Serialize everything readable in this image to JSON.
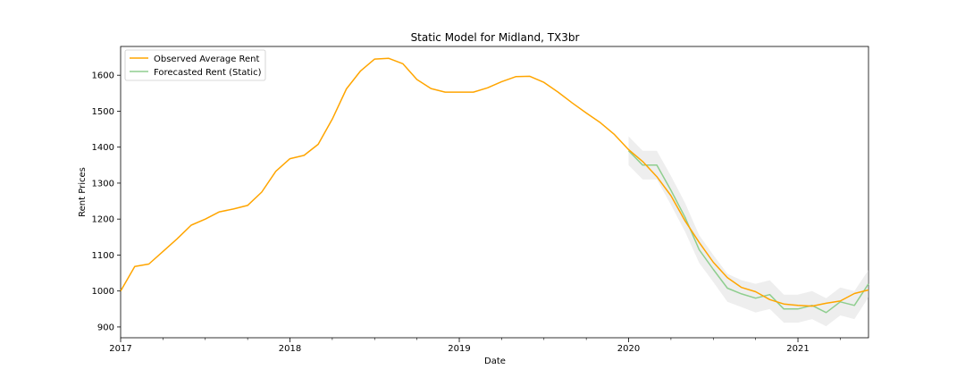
{
  "chart_data": {
    "type": "line",
    "title": "Static Model for Midland, TX3br",
    "xlabel": "Date",
    "ylabel": "Rent Prices",
    "x_ticks": [
      "2017",
      "2018",
      "2019",
      "2020",
      "2021"
    ],
    "y_ticks": [
      "900",
      "1000",
      "1100",
      "1200",
      "1300",
      "1400",
      "1500",
      "1600"
    ],
    "ylim": [
      870,
      1680
    ],
    "xlim": [
      "2017-01",
      "2021-06"
    ],
    "grid": false,
    "legend_position": "top-left",
    "series": [
      {
        "name": "Observed Average Rent",
        "color": "#ffa500",
        "x": [
          "2017-01",
          "2017-02",
          "2017-03",
          "2017-04",
          "2017-05",
          "2017-06",
          "2017-07",
          "2017-08",
          "2017-09",
          "2017-10",
          "2017-11",
          "2017-12",
          "2018-01",
          "2018-02",
          "2018-03",
          "2018-04",
          "2018-05",
          "2018-06",
          "2018-07",
          "2018-08",
          "2018-09",
          "2018-10",
          "2018-11",
          "2018-12",
          "2019-01",
          "2019-02",
          "2019-03",
          "2019-04",
          "2019-05",
          "2019-06",
          "2019-07",
          "2019-08",
          "2019-09",
          "2019-10",
          "2019-11",
          "2019-12",
          "2020-01",
          "2020-02",
          "2020-03",
          "2020-04",
          "2020-05",
          "2020-06",
          "2020-07",
          "2020-08",
          "2020-09",
          "2020-10",
          "2020-11",
          "2020-12",
          "2021-01",
          "2021-02",
          "2021-03",
          "2021-04",
          "2021-05",
          "2021-06"
        ],
        "values": [
          1000,
          1068,
          1075,
          1110,
          1145,
          1183,
          1200,
          1220,
          1228,
          1238,
          1275,
          1333,
          1368,
          1377,
          1408,
          1478,
          1562,
          1612,
          1645,
          1647,
          1632,
          1588,
          1563,
          1553,
          1553,
          1553,
          1565,
          1582,
          1596,
          1597,
          1580,
          1553,
          1523,
          1495,
          1468,
          1435,
          1393,
          1360,
          1318,
          1265,
          1195,
          1135,
          1080,
          1037,
          1010,
          998,
          976,
          964,
          960,
          958,
          966,
          972,
          993,
          1003
        ]
      },
      {
        "name": "Forecasted Rent (Static)",
        "color": "#8fce8f",
        "x": [
          "2020-01",
          "2020-02",
          "2020-03",
          "2020-04",
          "2020-05",
          "2020-06",
          "2020-07",
          "2020-08",
          "2020-09",
          "2020-10",
          "2020-11",
          "2020-12",
          "2021-01",
          "2021-02",
          "2021-03",
          "2021-04",
          "2021-05",
          "2021-06"
        ],
        "values": [
          1390,
          1350,
          1350,
          1280,
          1205,
          1115,
          1060,
          1008,
          992,
          980,
          990,
          950,
          950,
          960,
          940,
          970,
          960,
          1020
        ],
        "ci_lower": [
          1350,
          1310,
          1310,
          1240,
          1165,
          1078,
          1025,
          970,
          955,
          940,
          950,
          912,
          912,
          922,
          902,
          932,
          922,
          982
        ],
        "ci_upper": [
          1430,
          1390,
          1390,
          1320,
          1245,
          1155,
          1100,
          1048,
          1030,
          1020,
          1030,
          990,
          990,
          1000,
          980,
          1010,
          1000,
          1058
        ]
      }
    ]
  }
}
